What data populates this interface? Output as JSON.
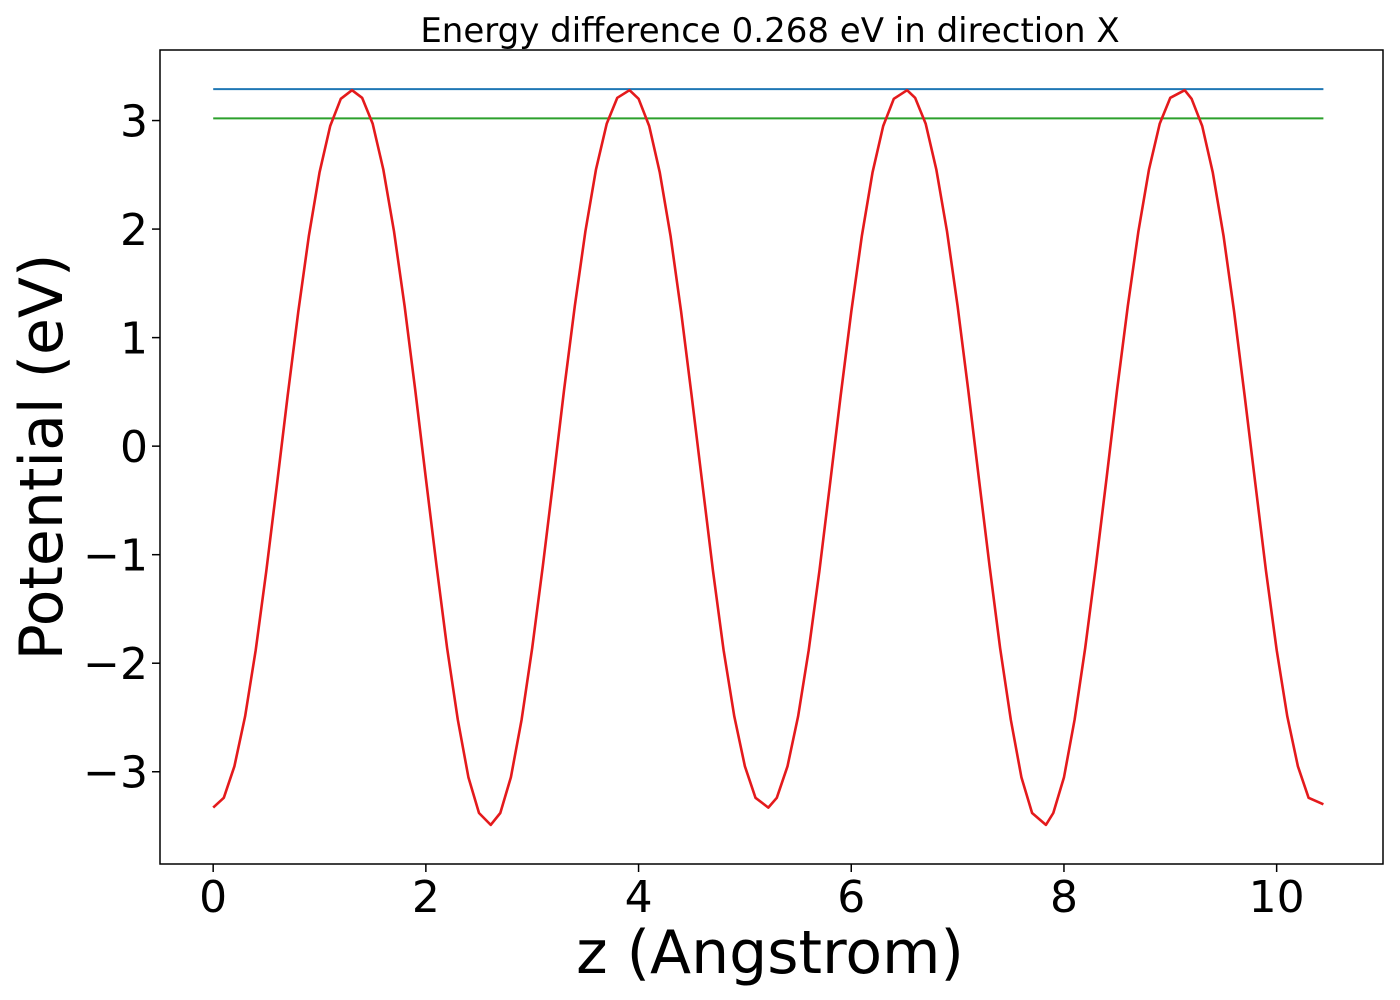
{
  "chart_data": {
    "type": "line",
    "title": "Energy difference 0.268 eV in direction X",
    "xlabel": "z (Angstrom)",
    "ylabel": "Potential (eV)",
    "xlim": [
      -0.5,
      11.0
    ],
    "ylim": [
      -3.85,
      3.65
    ],
    "xticks": [
      0,
      2,
      4,
      6,
      8,
      10
    ],
    "yticks": [
      -3,
      -2,
      -1,
      0,
      1,
      2,
      3
    ],
    "xtick_labels": [
      "0",
      "2",
      "4",
      "6",
      "8",
      "10"
    ],
    "ytick_labels": [
      "−3",
      "−2",
      "−1",
      "0",
      "1",
      "2",
      "3"
    ],
    "grid": false,
    "series": [
      {
        "color": "#1f77b4",
        "x": [
          0.0,
          10.44
        ],
        "y": [
          3.29,
          3.29
        ]
      },
      {
        "color": "#2ca02c",
        "x": [
          0.0,
          10.44
        ],
        "y": [
          3.02,
          3.02
        ]
      },
      {
        "color": "#e41a1c",
        "x": [
          0.0,
          0.1,
          0.2,
          0.3,
          0.4,
          0.5,
          0.6,
          0.7,
          0.8,
          0.9,
          1.0,
          1.1,
          1.2,
          1.305,
          1.4,
          1.5,
          1.6,
          1.7,
          1.8,
          1.9,
          2.0,
          2.1,
          2.2,
          2.3,
          2.4,
          2.5,
          2.61,
          2.7,
          2.8,
          2.9,
          3.0,
          3.1,
          3.2,
          3.3,
          3.4,
          3.5,
          3.6,
          3.7,
          3.8,
          3.915,
          4.0,
          4.1,
          4.2,
          4.3,
          4.4,
          4.5,
          4.6,
          4.7,
          4.8,
          4.9,
          5.0,
          5.1,
          5.22,
          5.3,
          5.4,
          5.5,
          5.6,
          5.7,
          5.8,
          5.9,
          6.0,
          6.1,
          6.2,
          6.3,
          6.4,
          6.525,
          6.6,
          6.7,
          6.8,
          6.9,
          7.0,
          7.1,
          7.2,
          7.3,
          7.4,
          7.5,
          7.6,
          7.7,
          7.83,
          7.9,
          8.0,
          8.1,
          8.2,
          8.3,
          8.4,
          8.5,
          8.6,
          8.7,
          8.8,
          8.9,
          9.0,
          9.135,
          9.2,
          9.3,
          9.4,
          9.5,
          9.6,
          9.7,
          9.8,
          9.9,
          10.0,
          10.1,
          10.2,
          10.3,
          10.44
        ],
        "y": [
          -3.33,
          -3.24,
          -2.95,
          -2.49,
          -1.88,
          -1.15,
          -0.35,
          0.46,
          1.24,
          1.94,
          2.52,
          2.95,
          3.2,
          3.28,
          3.21,
          2.97,
          2.55,
          1.98,
          1.29,
          0.52,
          -0.3,
          -1.1,
          -1.86,
          -2.52,
          -3.05,
          -3.38,
          -3.49,
          -3.38,
          -3.05,
          -2.52,
          -1.86,
          -1.1,
          -0.3,
          0.52,
          1.29,
          1.98,
          2.55,
          2.97,
          3.21,
          3.28,
          3.2,
          2.95,
          2.52,
          1.94,
          1.24,
          0.46,
          -0.35,
          -1.15,
          -1.88,
          -2.49,
          -2.95,
          -3.24,
          -3.33,
          -3.24,
          -2.95,
          -2.49,
          -1.88,
          -1.15,
          -0.35,
          0.46,
          1.24,
          1.94,
          2.52,
          2.95,
          3.2,
          3.28,
          3.21,
          2.97,
          2.55,
          1.98,
          1.29,
          0.52,
          -0.3,
          -1.1,
          -1.86,
          -2.52,
          -3.05,
          -3.38,
          -3.49,
          -3.38,
          -3.05,
          -2.52,
          -1.86,
          -1.1,
          -0.3,
          0.52,
          1.29,
          1.98,
          2.55,
          2.97,
          3.21,
          3.28,
          3.2,
          2.95,
          2.52,
          1.94,
          1.24,
          0.46,
          -0.35,
          -1.15,
          -1.88,
          -2.49,
          -2.95,
          -3.24,
          -3.3
        ]
      }
    ]
  }
}
